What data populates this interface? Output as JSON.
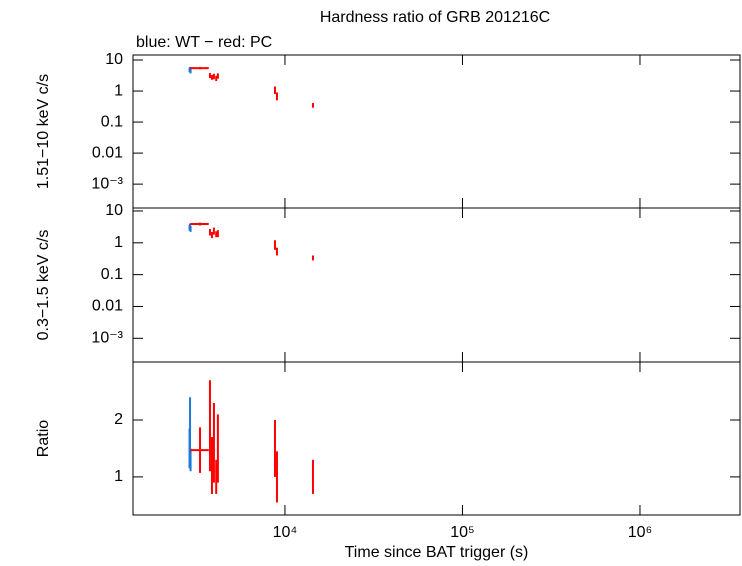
{
  "chart_data": [
    {
      "type": "errorbar",
      "title": "Hardness ratio of GRB 201216C",
      "subtitle": "blue: WT − red: PC",
      "ylabel": "1.51−10 keV c/s",
      "log_x": true,
      "log_y": true,
      "xlim": [
        1393,
        3660000
      ],
      "ylim": [
        0.00017,
        14.5
      ],
      "xticks": [
        {
          "value": 10000,
          "label": "10⁴"
        },
        {
          "value": 100000,
          "label": "10⁵"
        },
        {
          "value": 1000000,
          "label": "10⁶"
        }
      ],
      "yticks": [
        10,
        1,
        0.1,
        0.01,
        {
          "value": 0.001,
          "label": "10⁻³"
        }
      ],
      "series": [
        {
          "name": "WT",
          "color": "#1e78dc",
          "x": [
            2900,
            2920,
            2940
          ],
          "xerr": [
            15,
            15,
            15
          ],
          "values": [
            4.8,
            5.2,
            4.5
          ],
          "yerr": [
            0.8,
            0.8,
            0.8
          ]
        },
        {
          "name": "PC",
          "color": "#ff0000",
          "x": [
            3323,
            3780,
            3880,
            3980,
            4100,
            4190,
            8785,
            9016,
            14380
          ],
          "xerr": [
            400,
            30,
            30,
            30,
            30,
            30,
            60,
            60,
            100
          ],
          "values": [
            5.5,
            3.2,
            2.8,
            3.0,
            2.6,
            3.1,
            1.1,
            0.7,
            0.35
          ],
          "yerr": [
            0.5,
            0.6,
            0.5,
            0.6,
            0.5,
            0.6,
            0.3,
            0.2,
            0.06
          ]
        }
      ]
    },
    {
      "type": "errorbar",
      "ylabel": "0.3−1.5 keV c/s",
      "log_x": true,
      "log_y": true,
      "xlim": [
        1393,
        3660000
      ],
      "ylim": [
        0.00018,
        12.4
      ],
      "xticks": [
        10000,
        100000,
        1000000
      ],
      "yticks": [
        10,
        1,
        0.1,
        0.01,
        {
          "value": 0.001,
          "label": "10⁻³"
        }
      ],
      "series": [
        {
          "name": "WT",
          "color": "#1e78dc",
          "x": [
            2900,
            2920,
            2940
          ],
          "xerr": [
            15,
            15,
            15
          ],
          "values": [
            3.0,
            3.4,
            2.8
          ],
          "yerr": [
            0.6,
            0.6,
            0.6
          ]
        },
        {
          "name": "PC",
          "color": "#ff0000",
          "x": [
            3323,
            3780,
            3880,
            3980,
            4100,
            4190,
            8785,
            9016,
            14380
          ],
          "xerr": [
            400,
            30,
            30,
            30,
            30,
            30,
            60,
            60,
            100
          ],
          "values": [
            3.9,
            2.2,
            1.8,
            2.4,
            1.9,
            2.0,
            0.9,
            0.55,
            0.34
          ],
          "yerr": [
            0.4,
            0.5,
            0.4,
            0.6,
            0.4,
            0.5,
            0.3,
            0.15,
            0.06
          ]
        }
      ]
    },
    {
      "type": "errorbar",
      "ylabel": "Ratio",
      "xlabel": "Time since BAT trigger (s)",
      "log_x": true,
      "log_y": false,
      "xlim": [
        1393,
        3660000
      ],
      "ylim": [
        0.33,
        3.02
      ],
      "xticks": [
        {
          "value": 10000,
          "label": "10⁴"
        },
        {
          "value": 100000,
          "label": "10⁵"
        },
        {
          "value": 1000000,
          "label": "10⁶"
        }
      ],
      "yticks": [
        1,
        2
      ],
      "series": [
        {
          "name": "WT",
          "color": "#1e78dc",
          "x": [
            2900,
            2920,
            2940
          ],
          "xerr": [
            15,
            15,
            15
          ],
          "values": [
            1.5,
            1.9,
            1.3
          ],
          "yerr": [
            0.35,
            0.5,
            0.2
          ]
        },
        {
          "name": "PC",
          "color": "#ff0000",
          "x": [
            3323,
            3780,
            3880,
            3980,
            4100,
            4190,
            8785,
            9016,
            14380
          ],
          "xerr": [
            400,
            30,
            30,
            30,
            30,
            30,
            60,
            60,
            100
          ],
          "values": [
            1.47,
            1.9,
            1.2,
            1.6,
            1.0,
            1.5,
            1.5,
            1.0,
            1.0
          ],
          "yerr": [
            0.4,
            0.8,
            0.5,
            0.7,
            0.3,
            0.6,
            0.5,
            0.45,
            0.3
          ]
        }
      ]
    }
  ]
}
